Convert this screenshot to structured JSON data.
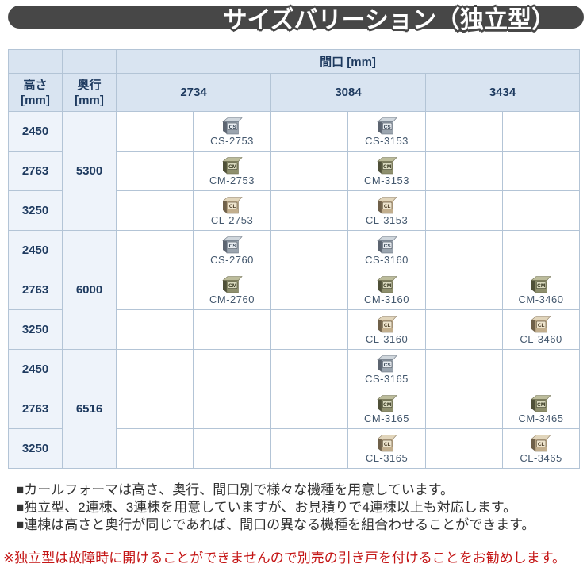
{
  "title": "サイズバリーション（独立型）",
  "table": {
    "header": {
      "width_title": "間口 [mm]",
      "height_label": "高さ\n[mm]",
      "depth_label": "奥行\n[mm]",
      "widths": [
        "2734",
        "3084",
        "3434"
      ]
    },
    "rows": [
      {
        "height": "2450",
        "depth": "5300",
        "cells": [
          {
            "model": "CS-2753",
            "series": "CS"
          },
          {
            "model": "CS-3153",
            "series": "CS"
          },
          null
        ]
      },
      {
        "height": "2763",
        "cells": [
          {
            "model": "CM-2753",
            "series": "CM"
          },
          {
            "model": "CM-3153",
            "series": "CM"
          },
          null
        ]
      },
      {
        "height": "3250",
        "cells": [
          {
            "model": "CL-2753",
            "series": "CL"
          },
          {
            "model": "CL-3153",
            "series": "CL"
          },
          null
        ]
      },
      {
        "height": "2450",
        "depth": "6000",
        "cells": [
          {
            "model": "CS-2760",
            "series": "CS"
          },
          {
            "model": "CS-3160",
            "series": "CS"
          },
          null
        ]
      },
      {
        "height": "2763",
        "cells": [
          {
            "model": "CM-2760",
            "series": "CM"
          },
          {
            "model": "CM-3160",
            "series": "CM"
          },
          {
            "model": "CM-3460",
            "series": "CM"
          }
        ]
      },
      {
        "height": "3250",
        "cells": [
          null,
          {
            "model": "CL-3160",
            "series": "CL"
          },
          {
            "model": "CL-3460",
            "series": "CL"
          }
        ]
      },
      {
        "height": "2450",
        "depth": "6516",
        "cells": [
          null,
          {
            "model": "CS-3165",
            "series": "CS"
          },
          null
        ]
      },
      {
        "height": "2763",
        "cells": [
          null,
          {
            "model": "CM-3165",
            "series": "CM"
          },
          {
            "model": "CM-3465",
            "series": "CM"
          }
        ]
      },
      {
        "height": "3250",
        "cells": [
          null,
          {
            "model": "CL-3165",
            "series": "CL"
          },
          {
            "model": "CL-3465",
            "series": "CL"
          }
        ]
      }
    ]
  },
  "icons": {
    "CS": {
      "side": "#5c6470",
      "front": "#9aa4ae",
      "top": "#cfd6dc",
      "badge": "#e9edf1",
      "letter": "#2e3d4d",
      "outline": "#6b7683"
    },
    "CM": {
      "side": "#4f5038",
      "front": "#8e8f6d",
      "top": "#bcbc9b",
      "badge": "#d9d9be",
      "letter": "#31321c",
      "outline": "#707052"
    },
    "CL": {
      "side": "#6f6049",
      "front": "#c2ae8d",
      "top": "#e1d5bb",
      "badge": "#eee4cd",
      "letter": "#4c3e28",
      "outline": "#8d7c60"
    }
  },
  "notes": [
    "■カールフォーマは高さ、奥行、間口別で様々な機種を用意しています。",
    "■独立型、2連棟、3連棟を用意していますが、お見積りで4連棟以上も対応します。",
    "■連棟は高さと奥行が同じであれば、間口の異なる機種を組合わせることができます。"
  ],
  "warning": "※独立型は故障時に開けることができませんので別売の引き戸を付けることをお勧めします。",
  "colors": {
    "title_bar_bg": "#474747",
    "title_text": "#ffffff",
    "header_bg": "#d9e4f1",
    "label_cell_bg": "#eef3fa",
    "table_border": "#b3c4d6",
    "header_text": "#1e3a5f",
    "model_text": "#44586e",
    "note_text": "#333333",
    "warning_text": "#c41414",
    "warning_divider": "#f1c3c3"
  }
}
